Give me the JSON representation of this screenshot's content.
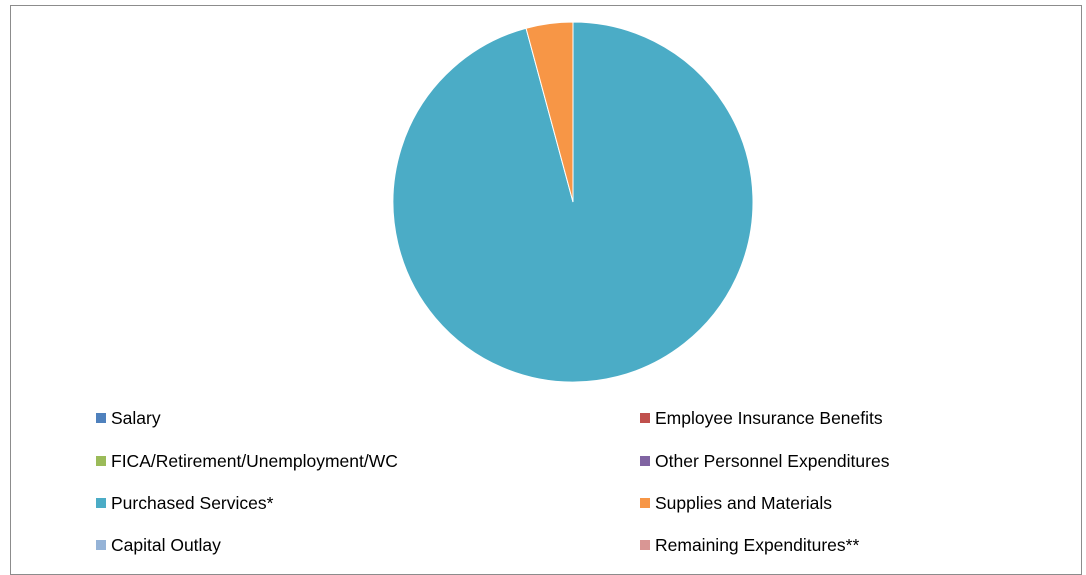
{
  "chart_data": {
    "type": "pie",
    "title": "",
    "start_angle_deg": 0,
    "direction": "clockwise",
    "slices": [
      {
        "label": "Salary",
        "value": 0,
        "color": "#4F81BD"
      },
      {
        "label": "Employee Insurance Benefits",
        "value": 0,
        "color": "#C0504D"
      },
      {
        "label": "FICA/Retirement/Unemployment/WC",
        "value": 0,
        "color": "#9BBB59"
      },
      {
        "label": "Other Personnel Expenditures",
        "value": 0,
        "color": "#8064A2"
      },
      {
        "label": "Purchased Services*",
        "value": 95.8,
        "color": "#4BACC6"
      },
      {
        "label": "Supplies and Materials",
        "value": 4.2,
        "color": "#F79646"
      },
      {
        "label": "Capital Outlay",
        "value": 0,
        "color": "#95B3D7"
      },
      {
        "label": "Remaining Expenditures**",
        "value": 0,
        "color": "#D99694"
      }
    ],
    "legend": {
      "placement": "bottom",
      "columns": 2,
      "entries": [
        "Salary",
        "Employee Insurance Benefits",
        "FICA/Retirement/Unemployment/WC",
        "Other Personnel Expenditures",
        "Purchased Services*",
        "Supplies and Materials",
        "Capital Outlay",
        "Remaining Expenditures**"
      ]
    }
  }
}
